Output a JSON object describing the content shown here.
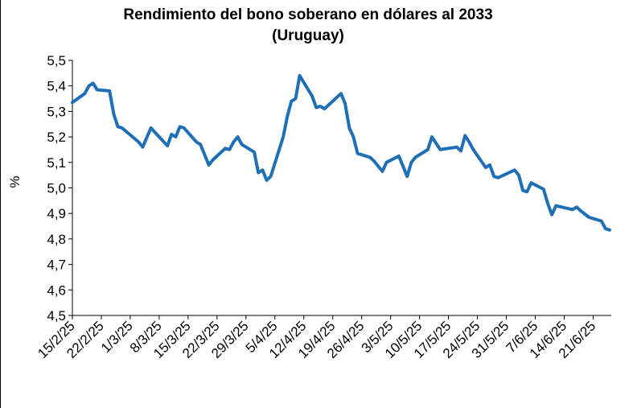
{
  "chart_data": {
    "type": "line",
    "title": "Rendimiento del bono soberano en dólares al 2033",
    "subtitle": "(Uruguay)",
    "y_label": "%",
    "color": "#1f6fb6",
    "x": [
      "2025-02-15",
      "2025-02-18",
      "2025-02-19",
      "2025-02-20",
      "2025-02-21",
      "2025-02-24",
      "2025-02-25",
      "2025-02-26",
      "2025-02-27",
      "2025-03-03",
      "2025-03-04",
      "2025-03-06",
      "2025-03-10",
      "2025-03-11",
      "2025-03-12",
      "2025-03-13",
      "2025-03-14",
      "2025-03-17",
      "2025-03-18",
      "2025-03-20",
      "2025-03-21",
      "2025-03-24",
      "2025-03-25",
      "2025-03-26",
      "2025-03-27",
      "2025-03-28",
      "2025-03-31",
      "2025-04-01",
      "2025-04-02",
      "2025-04-03",
      "2025-04-04",
      "2025-04-07",
      "2025-04-08",
      "2025-04-09",
      "2025-04-10",
      "2025-04-11",
      "2025-04-14",
      "2025-04-15",
      "2025-04-16",
      "2025-04-17",
      "2025-04-21",
      "2025-04-22",
      "2025-04-23",
      "2025-04-24",
      "2025-04-25",
      "2025-04-28",
      "2025-04-29",
      "2025-05-01",
      "2025-05-02",
      "2025-05-05",
      "2025-05-06",
      "2025-05-07",
      "2025-05-08",
      "2025-05-09",
      "2025-05-12",
      "2025-05-13",
      "2025-05-15",
      "2025-05-19",
      "2025-05-20",
      "2025-05-21",
      "2025-05-22",
      "2025-05-23",
      "2025-05-26",
      "2025-05-27",
      "2025-05-28",
      "2025-05-29",
      "2025-06-02",
      "2025-06-03",
      "2025-06-04",
      "2025-06-05",
      "2025-06-06",
      "2025-06-09",
      "2025-06-10",
      "2025-06-11",
      "2025-06-12",
      "2025-06-16",
      "2025-06-17",
      "2025-06-18",
      "2025-06-20",
      "2025-06-23",
      "2025-06-24",
      "2025-06-25"
    ],
    "values": [
      5.335,
      5.37,
      5.4,
      5.41,
      5.385,
      5.38,
      5.29,
      5.24,
      5.235,
      5.18,
      5.16,
      5.235,
      5.165,
      5.21,
      5.2,
      5.24,
      5.235,
      5.18,
      5.17,
      5.09,
      5.11,
      5.155,
      5.15,
      5.18,
      5.2,
      5.17,
      5.14,
      5.06,
      5.07,
      5.03,
      5.045,
      5.2,
      5.28,
      5.34,
      5.35,
      5.44,
      5.36,
      5.315,
      5.32,
      5.31,
      5.37,
      5.33,
      5.235,
      5.2,
      5.135,
      5.12,
      5.105,
      5.065,
      5.1,
      5.125,
      5.085,
      5.045,
      5.1,
      5.12,
      5.15,
      5.2,
      5.15,
      5.16,
      5.145,
      5.205,
      5.18,
      5.15,
      5.08,
      5.09,
      5.045,
      5.04,
      5.07,
      5.05,
      4.99,
      4.985,
      5.02,
      4.995,
      4.94,
      4.895,
      4.93,
      4.915,
      4.925,
      4.91,
      4.885,
      4.87,
      4.84,
      4.835
    ],
    "xlim": [
      "2025-02-15",
      "2025-06-25"
    ],
    "xticks": [
      {
        "value": "2025-02-15",
        "label": "15/2/25"
      },
      {
        "value": "2025-02-22",
        "label": "22/2/25"
      },
      {
        "value": "2025-03-01",
        "label": "1/3/25"
      },
      {
        "value": "2025-03-08",
        "label": "8/3/25"
      },
      {
        "value": "2025-03-15",
        "label": "15/3/25"
      },
      {
        "value": "2025-03-22",
        "label": "22/3/25"
      },
      {
        "value": "2025-03-29",
        "label": "29/3/25"
      },
      {
        "value": "2025-04-05",
        "label": "5/4/25"
      },
      {
        "value": "2025-04-12",
        "label": "12/4/25"
      },
      {
        "value": "2025-04-19",
        "label": "19/4/25"
      },
      {
        "value": "2025-04-26",
        "label": "26/4/25"
      },
      {
        "value": "2025-05-03",
        "label": "3/5/25"
      },
      {
        "value": "2025-05-10",
        "label": "10/5/25"
      },
      {
        "value": "2025-05-17",
        "label": "17/5/25"
      },
      {
        "value": "2025-05-24",
        "label": "24/5/25"
      },
      {
        "value": "2025-05-31",
        "label": "31/5/25"
      },
      {
        "value": "2025-06-07",
        "label": "7/6/25"
      },
      {
        "value": "2025-06-14",
        "label": "14/6/25"
      },
      {
        "value": "2025-06-21",
        "label": "21/6/25"
      }
    ],
    "ylim": [
      4.5,
      5.5
    ],
    "yticks": [
      {
        "value": 4.5,
        "label": "4,5"
      },
      {
        "value": 4.6,
        "label": "4,6"
      },
      {
        "value": 4.7,
        "label": "4,7"
      },
      {
        "value": 4.8,
        "label": "4,8"
      },
      {
        "value": 4.9,
        "label": "4,9"
      },
      {
        "value": 5.0,
        "label": "5,0"
      },
      {
        "value": 5.1,
        "label": "5,1"
      },
      {
        "value": 5.2,
        "label": "5,2"
      },
      {
        "value": 5.3,
        "label": "5,3"
      },
      {
        "value": 5.4,
        "label": "5,4"
      },
      {
        "value": 5.5,
        "label": "5,5"
      }
    ],
    "grid": false
  }
}
